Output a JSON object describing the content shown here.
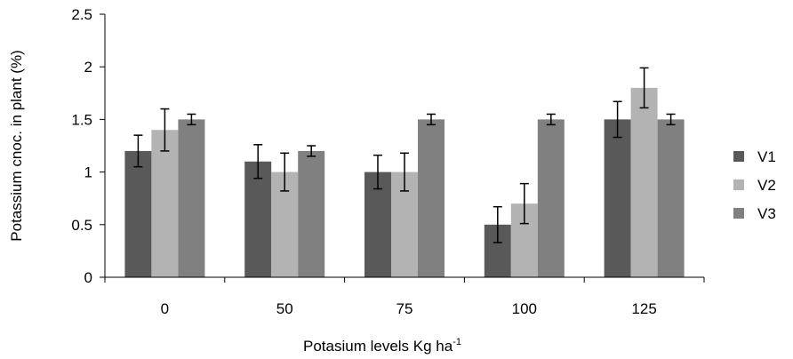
{
  "chart_data": {
    "type": "bar",
    "categories": [
      "0",
      "50",
      "75",
      "100",
      "125"
    ],
    "series": [
      {
        "name": "V1",
        "color": "#595959",
        "values": [
          1.2,
          1.1,
          1.0,
          0.5,
          1.5
        ],
        "errors": [
          0.15,
          0.16,
          0.16,
          0.17,
          0.17
        ]
      },
      {
        "name": "V2",
        "color": "#b3b3b3",
        "values": [
          1.4,
          1.0,
          1.0,
          0.7,
          1.8
        ],
        "errors": [
          0.2,
          0.18,
          0.18,
          0.19,
          0.19
        ]
      },
      {
        "name": "V3",
        "color": "#808080",
        "values": [
          1.5,
          1.2,
          1.5,
          1.5,
          1.5
        ],
        "errors": [
          0.05,
          0.05,
          0.05,
          0.05,
          0.05
        ]
      }
    ],
    "ylim": [
      0,
      2.5
    ],
    "yticks": [
      "0",
      "0.5",
      "1",
      "1.5",
      "2",
      "2.5"
    ],
    "ylabel": "Potassium cnoc. in plant (%)",
    "xlabel_main": "Potasium levels Kg ha",
    "xlabel_sup": "-1",
    "legend_position": "right",
    "grid": false,
    "error_bars": true
  }
}
